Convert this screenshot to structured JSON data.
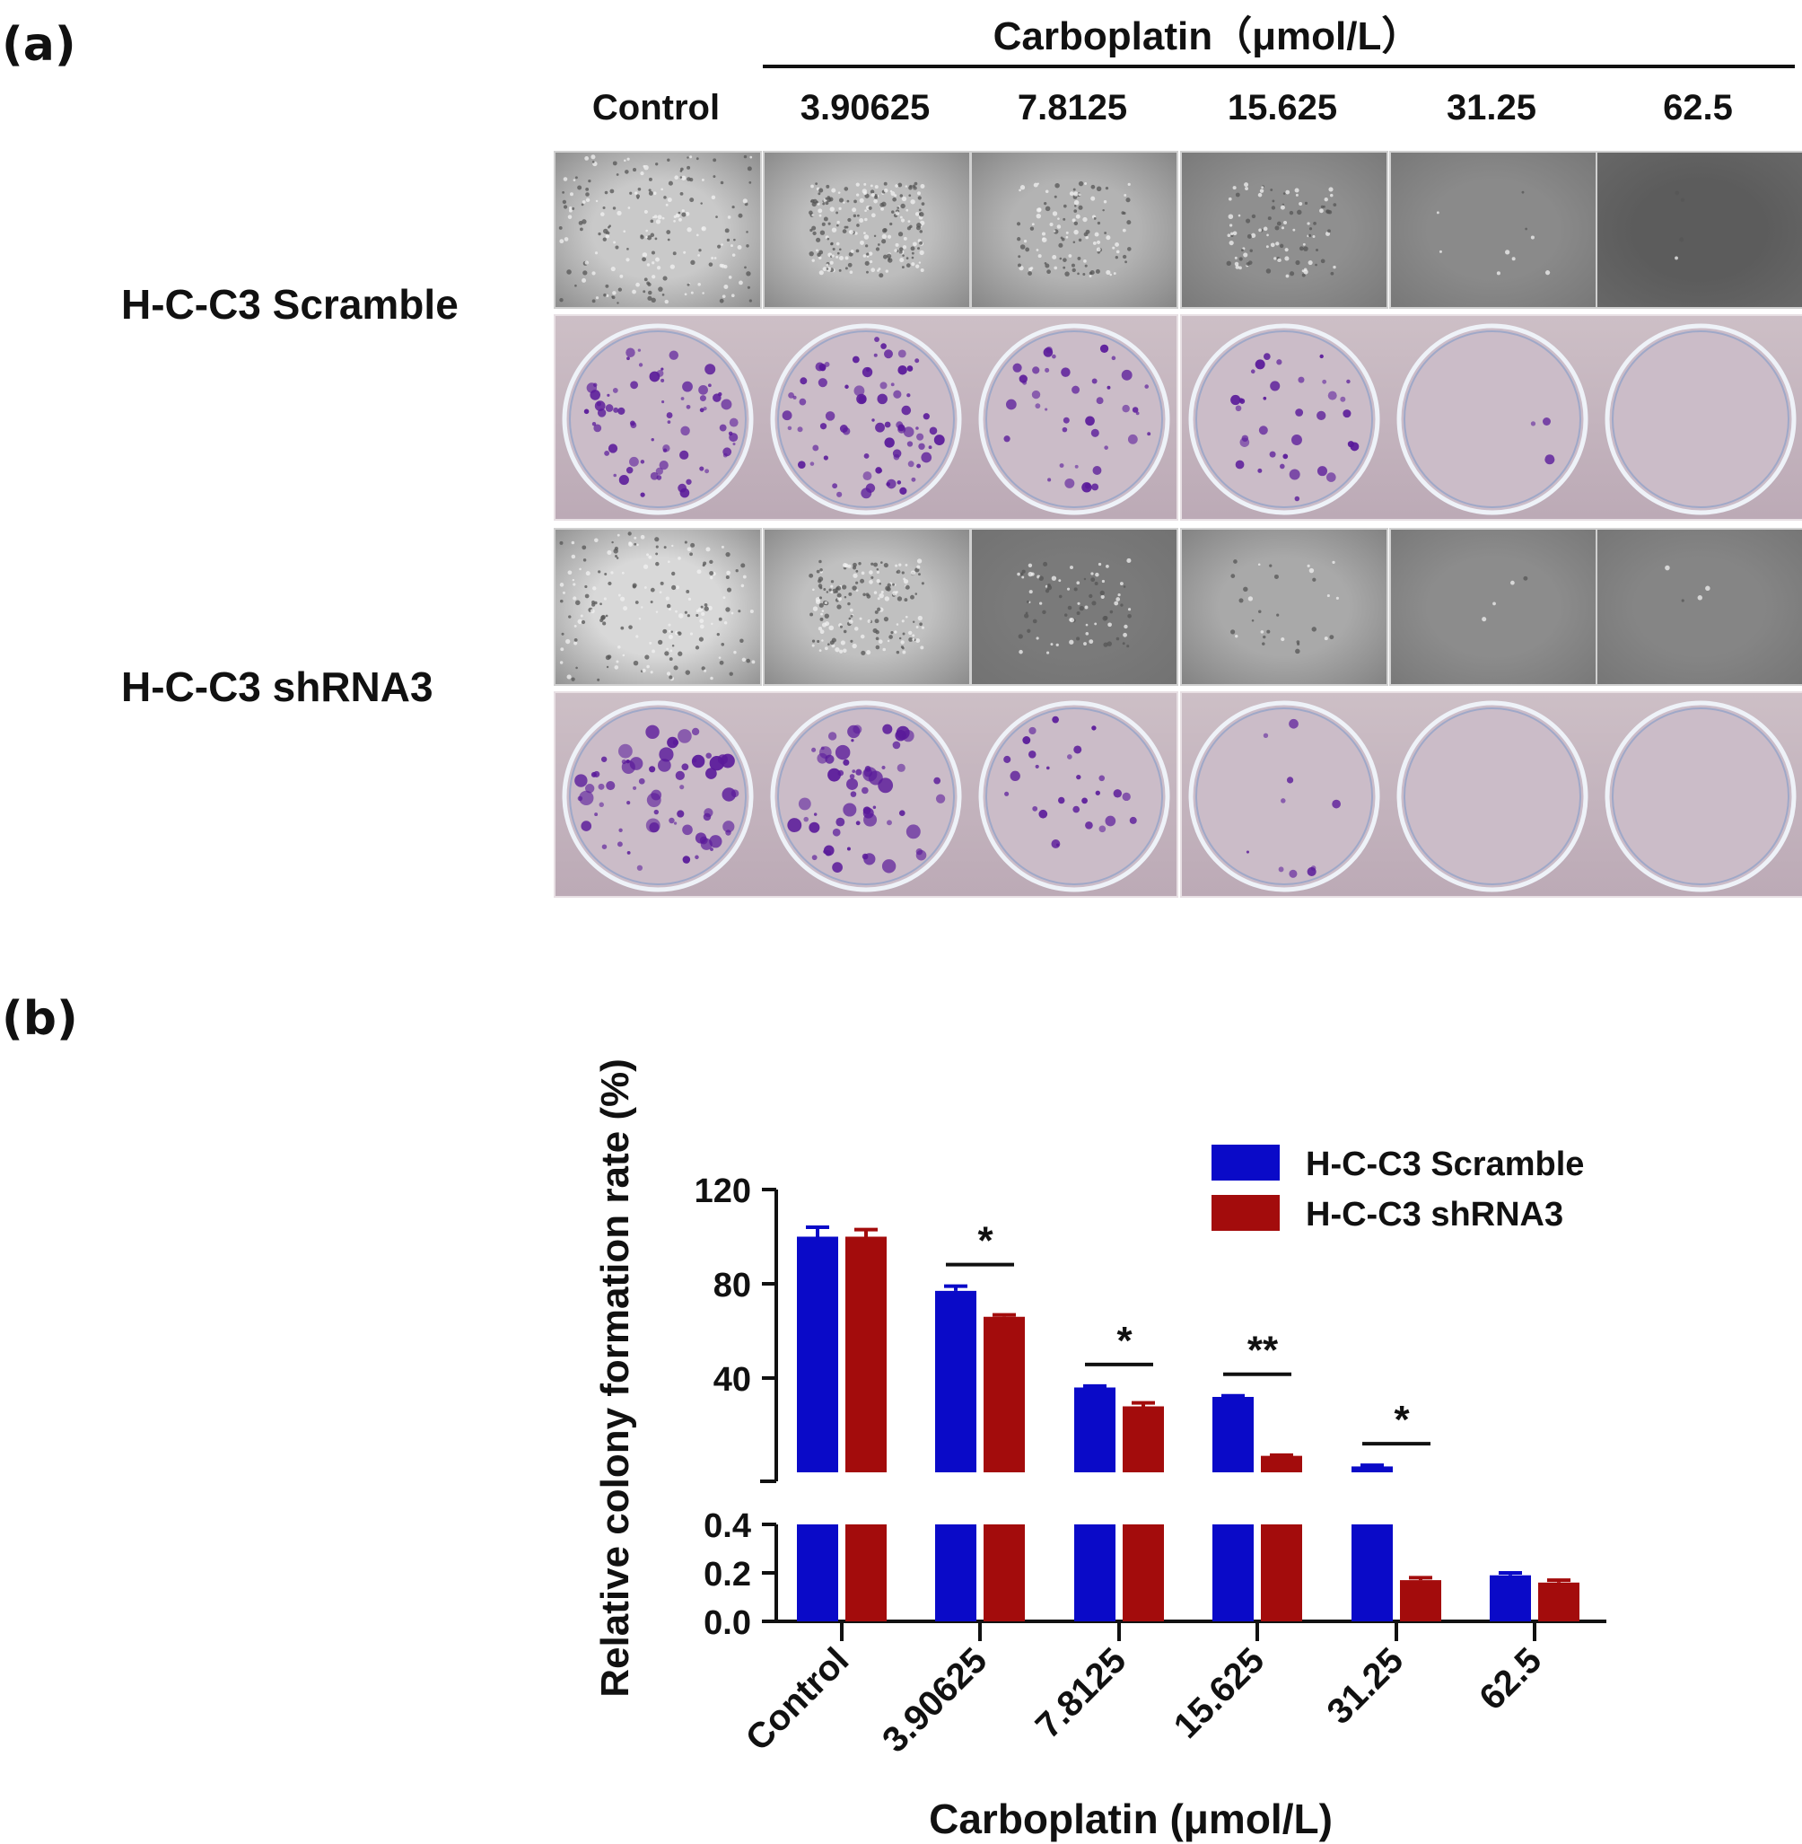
{
  "panel_a": {
    "label": "(a)",
    "header_title": "Carboplatin（μmol/L）",
    "columns": [
      "Control",
      "3.90625",
      "7.8125",
      "15.625",
      "31.25",
      "62.5"
    ],
    "rows": [
      {
        "label": "H-C-C3 Scramble",
        "micro_tones": [
          "#c9c9c9",
          "#bdbdbd",
          "#b3b3b3",
          "#8f8f8f",
          "#8a8a8a",
          "#5c5c5c"
        ],
        "colony_density": [
          70,
          75,
          40,
          34,
          3,
          0
        ]
      },
      {
        "label": "H-C-C3 shRNA3",
        "micro_tones": [
          "#d8d8d8",
          "#c0c0c0",
          "#7a7a7a",
          "#a9a9a9",
          "#8c8c8c",
          "#858585"
        ],
        "colony_density": [
          65,
          60,
          28,
          10,
          0,
          0
        ]
      }
    ]
  },
  "panel_b": {
    "label": "(b)"
  },
  "chart_data": {
    "type": "bar",
    "title": "",
    "xlabel": "Carboplatin (μmol/L)",
    "ylabel": "Relative colony formation rate (%)",
    "categories": [
      "Control",
      "3.90625",
      "7.8125",
      "15.625",
      "31.25",
      "62.5"
    ],
    "series": [
      {
        "name": "H-C-C3 Scramble",
        "color": "#0a0ac8",
        "values": [
          100,
          77,
          36,
          32,
          2.5,
          0.19
        ],
        "errors": [
          4,
          2,
          0.6,
          0.5,
          0.5,
          0.01
        ]
      },
      {
        "name": "H-C-C3 shRNA3",
        "color": "#a30c0c",
        "values": [
          100,
          66,
          28,
          7,
          0.17,
          0.16
        ],
        "errors": [
          3,
          0.8,
          1.5,
          0.3,
          0.01,
          0.01
        ]
      }
    ],
    "y_axis_broken": true,
    "ylim_lower": [
      0,
      0.4
    ],
    "ylim_upper": [
      0,
      120
    ],
    "yticks_upper": [
      "40",
      "80",
      "120"
    ],
    "yticks_lower": [
      "0.0",
      "0.2",
      "0.4"
    ],
    "significance": [
      {
        "category": "3.90625",
        "mark": "*"
      },
      {
        "category": "7.8125",
        "mark": "*"
      },
      {
        "category": "15.625",
        "mark": "**"
      },
      {
        "category": "31.25",
        "mark": "*"
      }
    ],
    "legend_position": "top-right"
  }
}
